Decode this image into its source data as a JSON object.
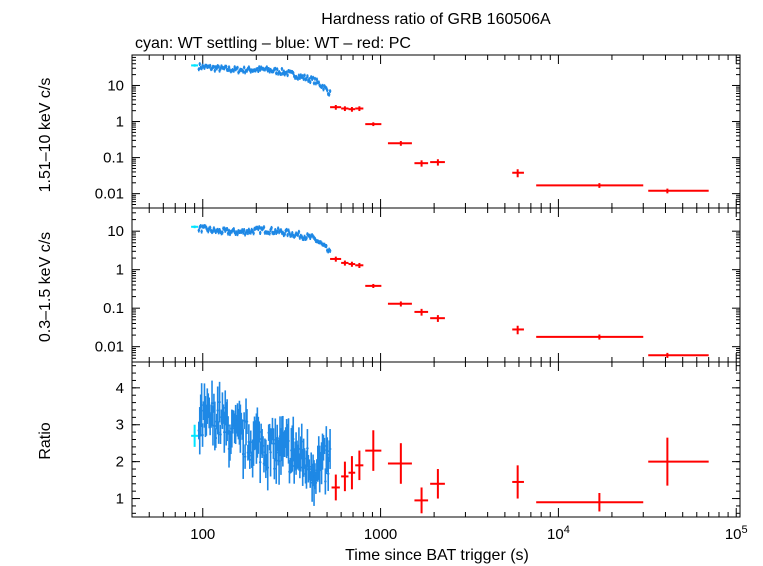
{
  "chart_data": {
    "type": "scatter",
    "title": "Hardness ratio of GRB 160506A",
    "subtitle": "cyan: WT settling – blue: WT – red: PC",
    "xlabel": "Time since BAT trigger (s)",
    "xscale": "log",
    "xlim": [
      40,
      105000
    ],
    "x_ticks": [
      {
        "value": 100,
        "label": "100"
      },
      {
        "value": 1000,
        "label": "1000"
      },
      {
        "value": 10000,
        "label": "10",
        "exp": "4"
      },
      {
        "value": 100000,
        "label": "10",
        "exp": "5"
      }
    ],
    "colors": {
      "wt_settling": "#00e5ff",
      "wt": "#1e88e5",
      "pc": "#ff0000"
    },
    "panels": [
      {
        "name": "hard",
        "ylabel": "1.51–10 keV c/s",
        "yscale": "log",
        "ylim": [
          0.004,
          70
        ],
        "y_ticks": [
          {
            "value": 10,
            "label": "10"
          },
          {
            "value": 1,
            "label": "1"
          },
          {
            "value": 0.1,
            "label": "0.1"
          },
          {
            "value": 0.01,
            "label": "0.01"
          }
        ],
        "wt_settling": [
          {
            "x": 90,
            "y": 36,
            "xlo": 86,
            "xhi": 94,
            "yerr_frac": 0.08
          }
        ],
        "wt_curve": [
          [
            95,
            34
          ],
          [
            120,
            30
          ],
          [
            160,
            27
          ],
          [
            220,
            28
          ],
          [
            280,
            24
          ],
          [
            350,
            18
          ],
          [
            420,
            14
          ],
          [
            480,
            9
          ],
          [
            520,
            6
          ]
        ],
        "pc": [
          {
            "x": 560,
            "xlo": 520,
            "xhi": 600,
            "y": 2.5,
            "yerr_frac": 0.15
          },
          {
            "x": 630,
            "xlo": 600,
            "xhi": 660,
            "y": 2.3,
            "yerr_frac": 0.15
          },
          {
            "x": 690,
            "xlo": 660,
            "xhi": 720,
            "y": 2.2,
            "yerr_frac": 0.15
          },
          {
            "x": 760,
            "xlo": 720,
            "xhi": 800,
            "y": 2.3,
            "yerr_frac": 0.15
          },
          {
            "x": 910,
            "xlo": 820,
            "xhi": 1010,
            "y": 0.85,
            "yerr_frac": 0.12
          },
          {
            "x": 1300,
            "xlo": 1100,
            "xhi": 1500,
            "y": 0.25,
            "yerr_frac": 0.15
          },
          {
            "x": 1700,
            "xlo": 1550,
            "xhi": 1850,
            "y": 0.07,
            "yerr_frac": 0.2
          },
          {
            "x": 2100,
            "xlo": 1900,
            "xhi": 2300,
            "y": 0.075,
            "yerr_frac": 0.2
          },
          {
            "x": 5900,
            "xlo": 5500,
            "xhi": 6400,
            "y": 0.038,
            "yerr_frac": 0.25
          },
          {
            "x": 17000,
            "xlo": 7500,
            "xhi": 30000,
            "y": 0.017,
            "yerr_frac": 0.15
          },
          {
            "x": 41000,
            "xlo": 32000,
            "xhi": 70000,
            "y": 0.012,
            "yerr_frac": 0.15
          }
        ]
      },
      {
        "name": "soft",
        "ylabel": "0.3–1.5 keV c/s",
        "yscale": "log",
        "ylim": [
          0.004,
          40
        ],
        "y_ticks": [
          {
            "value": 10,
            "label": "10"
          },
          {
            "value": 1,
            "label": "1"
          },
          {
            "value": 0.1,
            "label": "0.1"
          },
          {
            "value": 0.01,
            "label": "0.01"
          }
        ],
        "wt_settling": [
          {
            "x": 90,
            "y": 13,
            "xlo": 86,
            "xhi": 94,
            "yerr_frac": 0.08
          }
        ],
        "wt_curve": [
          [
            95,
            12
          ],
          [
            120,
            10
          ],
          [
            160,
            9.5
          ],
          [
            220,
            11
          ],
          [
            280,
            9.5
          ],
          [
            350,
            8
          ],
          [
            420,
            6.5
          ],
          [
            480,
            4
          ],
          [
            520,
            2.6
          ]
        ],
        "pc": [
          {
            "x": 560,
            "xlo": 520,
            "xhi": 600,
            "y": 1.9,
            "yerr_frac": 0.15
          },
          {
            "x": 630,
            "xlo": 600,
            "xhi": 660,
            "y": 1.5,
            "yerr_frac": 0.15
          },
          {
            "x": 690,
            "xlo": 660,
            "xhi": 720,
            "y": 1.4,
            "yerr_frac": 0.15
          },
          {
            "x": 760,
            "xlo": 720,
            "xhi": 800,
            "y": 1.3,
            "yerr_frac": 0.15
          },
          {
            "x": 910,
            "xlo": 820,
            "xhi": 1010,
            "y": 0.38,
            "yerr_frac": 0.12
          },
          {
            "x": 1300,
            "xlo": 1100,
            "xhi": 1500,
            "y": 0.13,
            "yerr_frac": 0.15
          },
          {
            "x": 1700,
            "xlo": 1550,
            "xhi": 1850,
            "y": 0.08,
            "yerr_frac": 0.2
          },
          {
            "x": 2100,
            "xlo": 1900,
            "xhi": 2300,
            "y": 0.055,
            "yerr_frac": 0.2
          },
          {
            "x": 5900,
            "xlo": 5500,
            "xhi": 6400,
            "y": 0.028,
            "yerr_frac": 0.25
          },
          {
            "x": 17000,
            "xlo": 7500,
            "xhi": 30000,
            "y": 0.018,
            "yerr_frac": 0.15
          },
          {
            "x": 41000,
            "xlo": 32000,
            "xhi": 70000,
            "y": 0.006,
            "yerr_frac": 0.15
          }
        ]
      },
      {
        "name": "ratio",
        "ylabel": "Ratio",
        "yscale": "linear",
        "ylim": [
          0.5,
          4.7
        ],
        "y_ticks": [
          {
            "value": 1,
            "label": "1"
          },
          {
            "value": 2,
            "label": "2"
          },
          {
            "value": 3,
            "label": "3"
          },
          {
            "value": 4,
            "label": "4"
          }
        ],
        "wt_settling": [
          {
            "x": 90,
            "y": 2.7,
            "xlo": 86,
            "xhi": 94,
            "yerr": 0.3
          }
        ],
        "wt_curve": [
          [
            95,
            3.0
          ],
          [
            120,
            3.2
          ],
          [
            150,
            2.7
          ],
          [
            200,
            2.5
          ],
          [
            260,
            2.3
          ],
          [
            330,
            2.2
          ],
          [
            400,
            1.9
          ],
          [
            460,
            1.8
          ],
          [
            520,
            2.0
          ]
        ],
        "pc": [
          {
            "x": 560,
            "xlo": 530,
            "xhi": 590,
            "y": 1.3,
            "yerr": 0.35
          },
          {
            "x": 630,
            "xlo": 600,
            "xhi": 660,
            "y": 1.6,
            "yerr": 0.4
          },
          {
            "x": 690,
            "xlo": 660,
            "xhi": 720,
            "y": 1.7,
            "yerr": 0.45
          },
          {
            "x": 760,
            "xlo": 720,
            "xhi": 800,
            "y": 1.9,
            "yerr": 0.4
          },
          {
            "x": 910,
            "xlo": 820,
            "xhi": 1010,
            "y": 2.3,
            "yerr": 0.55
          },
          {
            "x": 1300,
            "xlo": 1100,
            "xhi": 1500,
            "y": 1.95,
            "yerr": 0.55
          },
          {
            "x": 1700,
            "xlo": 1550,
            "xhi": 1850,
            "y": 0.95,
            "yerr": 0.35
          },
          {
            "x": 2100,
            "xlo": 1900,
            "xhi": 2300,
            "y": 1.4,
            "yerr": 0.4
          },
          {
            "x": 5900,
            "xlo": 5500,
            "xhi": 6400,
            "y": 1.45,
            "yerr": 0.45
          },
          {
            "x": 17000,
            "xlo": 7500,
            "xhi": 30000,
            "y": 0.9,
            "yerr": 0.25
          },
          {
            "x": 41000,
            "xlo": 32000,
            "xhi": 70000,
            "y": 2.0,
            "yerr": 0.65
          }
        ]
      }
    ]
  }
}
